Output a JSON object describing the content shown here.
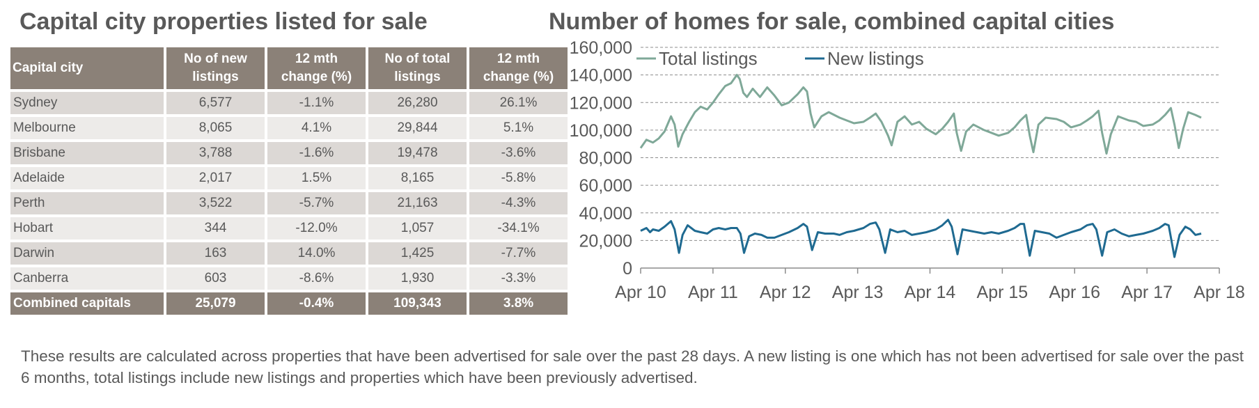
{
  "left_title": "Capital city properties listed for sale",
  "right_title": "Number of homes for sale, combined capital cities",
  "table": {
    "headers": [
      "Capital city",
      "No of new listings",
      "12 mth change (%)",
      "No of total listings",
      "12 mth change (%)"
    ],
    "rows": [
      [
        "Sydney",
        "6,577",
        "-1.1%",
        "26,280",
        "26.1%"
      ],
      [
        "Melbourne",
        "8,065",
        "4.1%",
        "29,844",
        "5.1%"
      ],
      [
        "Brisbane",
        "3,788",
        "-1.6%",
        "19,478",
        "-3.6%"
      ],
      [
        "Adelaide",
        "2,017",
        "1.5%",
        "8,165",
        "-5.8%"
      ],
      [
        "Perth",
        "3,522",
        "-5.7%",
        "21,163",
        "-4.3%"
      ],
      [
        "Hobart",
        "344",
        "-12.0%",
        "1,057",
        "-34.1%"
      ],
      [
        "Darwin",
        "163",
        "14.0%",
        "1,425",
        "-7.7%"
      ],
      [
        "Canberra",
        "603",
        "-8.6%",
        "1,930",
        "-3.3%"
      ]
    ],
    "total": [
      "Combined capitals",
      "25,079",
      "-0.4%",
      "109,343",
      "3.8%"
    ]
  },
  "footnote": "These results are calculated across properties that have been advertised for sale over the past 28 days.  A new listing is one which has not been advertised for sale over the past 6 months, total listings include new listings and properties which have been previously advertised.",
  "colors": {
    "header_bg": "#8b8178",
    "row_dark": "#dcd8d5",
    "row_light": "#edebe9",
    "total_line": "#7fa898",
    "new_line": "#1f6a91"
  },
  "chart_data": {
    "type": "line",
    "title": "Number of homes for sale, combined capital cities",
    "ylim": [
      0,
      160000
    ],
    "y_ticks": [
      "0",
      "20,000",
      "40,000",
      "60,000",
      "80,000",
      "100,000",
      "120,000",
      "140,000",
      "160,000"
    ],
    "x_ticks": [
      "Apr 10",
      "Apr 11",
      "Apr 12",
      "Apr 13",
      "Apr 14",
      "Apr 15",
      "Apr 16",
      "Apr 17",
      "Apr 18"
    ],
    "grid": "horizontal dashed",
    "legend": "top-left",
    "series": [
      {
        "name": "Total listings",
        "points": [
          [
            2010.25,
            87000
          ],
          [
            2010.33,
            93000
          ],
          [
            2010.42,
            91000
          ],
          [
            2010.5,
            94000
          ],
          [
            2010.58,
            99000
          ],
          [
            2010.67,
            110000
          ],
          [
            2010.72,
            104000
          ],
          [
            2010.77,
            88000
          ],
          [
            2010.83,
            97000
          ],
          [
            2010.92,
            106000
          ],
          [
            2011.0,
            113000
          ],
          [
            2011.08,
            117000
          ],
          [
            2011.17,
            115000
          ],
          [
            2011.25,
            120000
          ],
          [
            2011.33,
            126000
          ],
          [
            2011.42,
            132000
          ],
          [
            2011.5,
            134000
          ],
          [
            2011.58,
            140000
          ],
          [
            2011.62,
            137000
          ],
          [
            2011.67,
            127000
          ],
          [
            2011.72,
            124000
          ],
          [
            2011.8,
            130000
          ],
          [
            2011.9,
            124000
          ],
          [
            2012.0,
            131000
          ],
          [
            2012.1,
            125000
          ],
          [
            2012.2,
            118000
          ],
          [
            2012.3,
            120000
          ],
          [
            2012.42,
            126000
          ],
          [
            2012.5,
            131000
          ],
          [
            2012.55,
            128000
          ],
          [
            2012.6,
            112000
          ],
          [
            2012.65,
            102000
          ],
          [
            2012.75,
            110000
          ],
          [
            2012.85,
            113000
          ],
          [
            2013.0,
            109000
          ],
          [
            2013.1,
            107000
          ],
          [
            2013.2,
            105000
          ],
          [
            2013.33,
            106000
          ],
          [
            2013.42,
            109000
          ],
          [
            2013.5,
            112000
          ],
          [
            2013.58,
            106000
          ],
          [
            2013.67,
            96000
          ],
          [
            2013.72,
            89000
          ],
          [
            2013.8,
            106000
          ],
          [
            2013.9,
            110000
          ],
          [
            2014.0,
            104000
          ],
          [
            2014.1,
            106000
          ],
          [
            2014.2,
            101000
          ],
          [
            2014.33,
            97000
          ],
          [
            2014.42,
            101000
          ],
          [
            2014.5,
            106000
          ],
          [
            2014.58,
            112000
          ],
          [
            2014.62,
            98000
          ],
          [
            2014.68,
            85000
          ],
          [
            2014.75,
            99000
          ],
          [
            2014.85,
            104000
          ],
          [
            2015.0,
            100000
          ],
          [
            2015.1,
            98000
          ],
          [
            2015.2,
            96000
          ],
          [
            2015.33,
            98000
          ],
          [
            2015.42,
            102000
          ],
          [
            2015.5,
            107000
          ],
          [
            2015.58,
            111000
          ],
          [
            2015.63,
            96000
          ],
          [
            2015.68,
            84000
          ],
          [
            2015.75,
            104000
          ],
          [
            2015.85,
            109000
          ],
          [
            2016.0,
            108000
          ],
          [
            2016.1,
            106000
          ],
          [
            2016.2,
            102000
          ],
          [
            2016.33,
            104000
          ],
          [
            2016.42,
            107000
          ],
          [
            2016.5,
            110000
          ],
          [
            2016.58,
            114000
          ],
          [
            2016.63,
            98000
          ],
          [
            2016.69,
            83000
          ],
          [
            2016.75,
            97000
          ],
          [
            2016.85,
            110000
          ],
          [
            2017.0,
            107000
          ],
          [
            2017.1,
            106000
          ],
          [
            2017.2,
            103000
          ],
          [
            2017.33,
            104000
          ],
          [
            2017.42,
            107000
          ],
          [
            2017.5,
            111000
          ],
          [
            2017.58,
            116000
          ],
          [
            2017.63,
            104000
          ],
          [
            2017.69,
            87000
          ],
          [
            2017.75,
            101000
          ],
          [
            2017.82,
            113000
          ],
          [
            2017.92,
            111000
          ],
          [
            2018.0,
            109000
          ]
        ]
      },
      {
        "name": "New listings",
        "points": [
          [
            2010.25,
            27000
          ],
          [
            2010.33,
            29000
          ],
          [
            2010.38,
            26000
          ],
          [
            2010.42,
            28000
          ],
          [
            2010.5,
            27000
          ],
          [
            2010.58,
            30000
          ],
          [
            2010.67,
            34000
          ],
          [
            2010.72,
            28000
          ],
          [
            2010.78,
            11000
          ],
          [
            2010.83,
            24000
          ],
          [
            2010.9,
            31000
          ],
          [
            2011.0,
            27000
          ],
          [
            2011.08,
            26000
          ],
          [
            2011.17,
            25000
          ],
          [
            2011.25,
            28000
          ],
          [
            2011.33,
            29000
          ],
          [
            2011.42,
            28000
          ],
          [
            2011.5,
            29000
          ],
          [
            2011.58,
            29000
          ],
          [
            2011.63,
            25000
          ],
          [
            2011.68,
            11000
          ],
          [
            2011.75,
            23000
          ],
          [
            2011.83,
            25000
          ],
          [
            2011.92,
            24000
          ],
          [
            2012.0,
            22000
          ],
          [
            2012.1,
            22000
          ],
          [
            2012.2,
            24000
          ],
          [
            2012.3,
            26000
          ],
          [
            2012.42,
            29000
          ],
          [
            2012.5,
            32000
          ],
          [
            2012.55,
            30000
          ],
          [
            2012.62,
            13000
          ],
          [
            2012.7,
            26000
          ],
          [
            2012.8,
            25000
          ],
          [
            2012.92,
            25000
          ],
          [
            2013.0,
            24000
          ],
          [
            2013.1,
            26000
          ],
          [
            2013.2,
            27000
          ],
          [
            2013.33,
            29000
          ],
          [
            2013.42,
            32000
          ],
          [
            2013.5,
            33000
          ],
          [
            2013.55,
            28000
          ],
          [
            2013.63,
            11000
          ],
          [
            2013.7,
            28000
          ],
          [
            2013.8,
            26000
          ],
          [
            2013.9,
            27000
          ],
          [
            2014.0,
            24000
          ],
          [
            2014.1,
            25000
          ],
          [
            2014.2,
            26000
          ],
          [
            2014.33,
            28000
          ],
          [
            2014.42,
            31000
          ],
          [
            2014.5,
            35000
          ],
          [
            2014.55,
            30000
          ],
          [
            2014.63,
            10000
          ],
          [
            2014.7,
            28000
          ],
          [
            2014.8,
            27000
          ],
          [
            2014.9,
            26000
          ],
          [
            2015.0,
            25000
          ],
          [
            2015.1,
            26000
          ],
          [
            2015.2,
            25000
          ],
          [
            2015.33,
            27000
          ],
          [
            2015.42,
            29000
          ],
          [
            2015.5,
            32000
          ],
          [
            2015.55,
            32000
          ],
          [
            2015.63,
            9000
          ],
          [
            2015.7,
            27000
          ],
          [
            2015.8,
            26000
          ],
          [
            2015.9,
            25000
          ],
          [
            2016.0,
            22000
          ],
          [
            2016.1,
            24000
          ],
          [
            2016.2,
            26000
          ],
          [
            2016.33,
            28000
          ],
          [
            2016.42,
            31000
          ],
          [
            2016.5,
            32000
          ],
          [
            2016.55,
            28000
          ],
          [
            2016.63,
            9000
          ],
          [
            2016.7,
            26000
          ],
          [
            2016.8,
            28000
          ],
          [
            2016.9,
            25000
          ],
          [
            2017.0,
            23000
          ],
          [
            2017.1,
            24000
          ],
          [
            2017.2,
            25000
          ],
          [
            2017.33,
            27000
          ],
          [
            2017.42,
            29000
          ],
          [
            2017.5,
            32000
          ],
          [
            2017.55,
            31000
          ],
          [
            2017.63,
            8000
          ],
          [
            2017.7,
            24000
          ],
          [
            2017.78,
            30000
          ],
          [
            2017.85,
            28000
          ],
          [
            2017.92,
            24000
          ],
          [
            2018.0,
            25000
          ]
        ]
      }
    ]
  }
}
